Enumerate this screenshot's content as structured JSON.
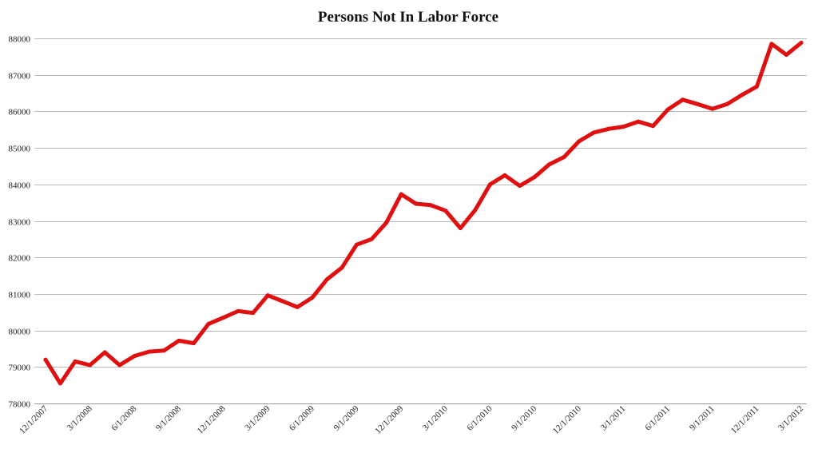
{
  "chart_data": {
    "type": "line",
    "title": "Persons Not In Labor Force",
    "xlabel": "",
    "ylabel": "",
    "ylim": [
      78000,
      88000
    ],
    "y_ticks": [
      "78000",
      "79000",
      "80000",
      "81000",
      "82000",
      "83000",
      "84000",
      "85000",
      "86000",
      "87000",
      "88000"
    ],
    "x_tick_labels": [
      "12/1/2007",
      "3/1/2008",
      "6/1/2008",
      "9/1/2008",
      "12/1/2008",
      "3/1/2009",
      "6/1/2009",
      "9/1/2009",
      "12/1/2009",
      "3/1/2010",
      "6/1/2010",
      "9/1/2010",
      "12/1/2010",
      "3/1/2011",
      "6/1/2011",
      "9/1/2011",
      "12/1/2011",
      "3/1/2012"
    ],
    "x_tick_every": 3,
    "grid": "horizontal",
    "legend": "none",
    "line_color": "#e01010",
    "x": [
      "12/1/2007",
      "1/1/2008",
      "2/1/2008",
      "3/1/2008",
      "4/1/2008",
      "5/1/2008",
      "6/1/2008",
      "7/1/2008",
      "8/1/2008",
      "9/1/2008",
      "10/1/2008",
      "11/1/2008",
      "12/1/2008",
      "1/1/2009",
      "2/1/2009",
      "3/1/2009",
      "4/1/2009",
      "5/1/2009",
      "6/1/2009",
      "7/1/2009",
      "8/1/2009",
      "9/1/2009",
      "10/1/2009",
      "11/1/2009",
      "12/1/2009",
      "1/1/2010",
      "2/1/2010",
      "3/1/2010",
      "4/1/2010",
      "5/1/2010",
      "6/1/2010",
      "7/1/2010",
      "8/1/2010",
      "9/1/2010",
      "10/1/2010",
      "11/1/2010",
      "12/1/2010",
      "1/1/2011",
      "2/1/2011",
      "3/1/2011",
      "4/1/2011",
      "5/1/2011",
      "6/1/2011",
      "7/1/2011",
      "8/1/2011",
      "9/1/2011",
      "10/1/2011",
      "11/1/2011",
      "12/1/2011",
      "1/1/2012",
      "2/1/2012",
      "3/1/2012"
    ],
    "values": [
      79200,
      78550,
      79150,
      79050,
      79400,
      79050,
      79300,
      79420,
      79450,
      79720,
      79650,
      80180,
      80350,
      80530,
      80480,
      80960,
      80800,
      80640,
      80900,
      81400,
      81720,
      82350,
      82500,
      82950,
      83730,
      83470,
      83430,
      83280,
      82800,
      83300,
      84000,
      84250,
      83960,
      84200,
      84550,
      84750,
      85180,
      85420,
      85520,
      85580,
      85720,
      85600,
      86050,
      86320,
      86200,
      86070,
      86200,
      86450,
      86680,
      87850,
      87550,
      87880
    ]
  }
}
